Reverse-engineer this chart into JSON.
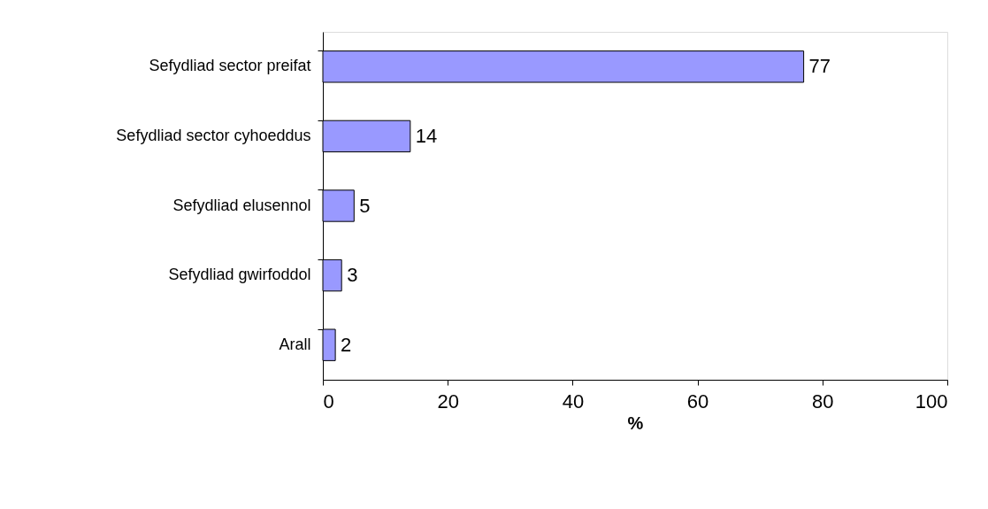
{
  "chart_data": {
    "type": "bar",
    "orientation": "horizontal",
    "xlabel": "%",
    "categories": [
      "Sefydliad sector preifat",
      "Sefydliad sector cyhoeddus",
      "Sefydliad elusennol",
      "Sefydliad gwirfoddol",
      "Arall"
    ],
    "values": [
      77,
      14,
      5,
      3,
      2
    ],
    "color": "#9999ff",
    "xlim": [
      0,
      100
    ],
    "xticks": [
      0,
      20,
      40,
      60,
      80,
      100
    ],
    "grid": false,
    "data_labels": true
  }
}
